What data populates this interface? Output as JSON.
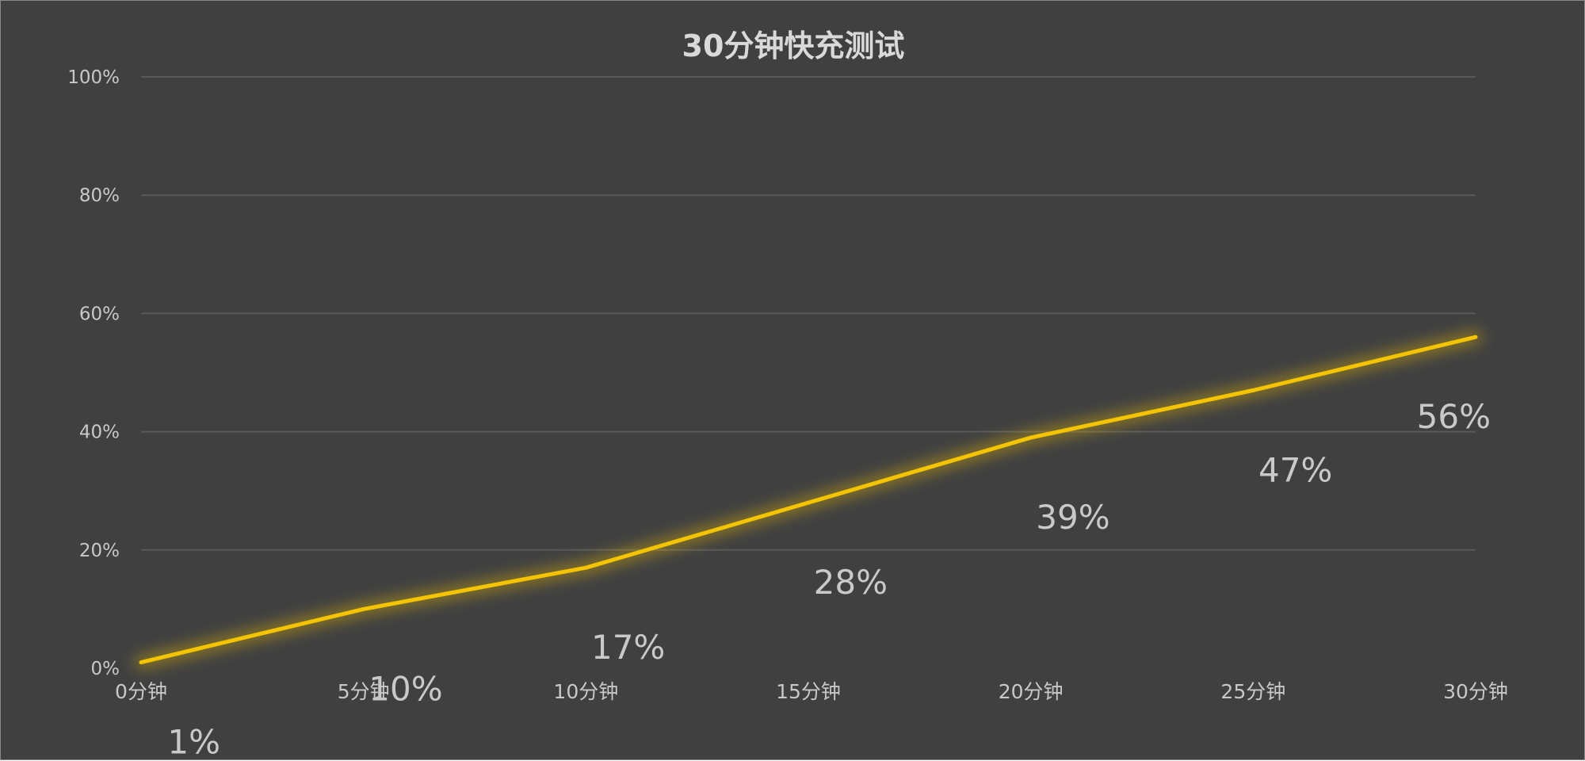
{
  "chart_data": {
    "type": "line",
    "title": "30分钟快充测试",
    "categories": [
      "0分钟",
      "5分钟",
      "10分钟",
      "15分钟",
      "20分钟",
      "25分钟",
      "30分钟"
    ],
    "series": [
      {
        "values": [
          1,
          10,
          17,
          28,
          39,
          47,
          56
        ],
        "data_labels": [
          "1%",
          "10%",
          "17%",
          "28%",
          "39%",
          "47%",
          "56%"
        ],
        "color": "#f5c400"
      }
    ],
    "y_ticks": [
      "0%",
      "20%",
      "40%",
      "60%",
      "80%",
      "100%"
    ],
    "ylim": [
      0,
      100
    ],
    "grid": true,
    "legend": "none",
    "colors": {
      "background": "#404040",
      "line": "#f5c400",
      "grid": "#595959",
      "text": "#c8c8c8"
    }
  }
}
